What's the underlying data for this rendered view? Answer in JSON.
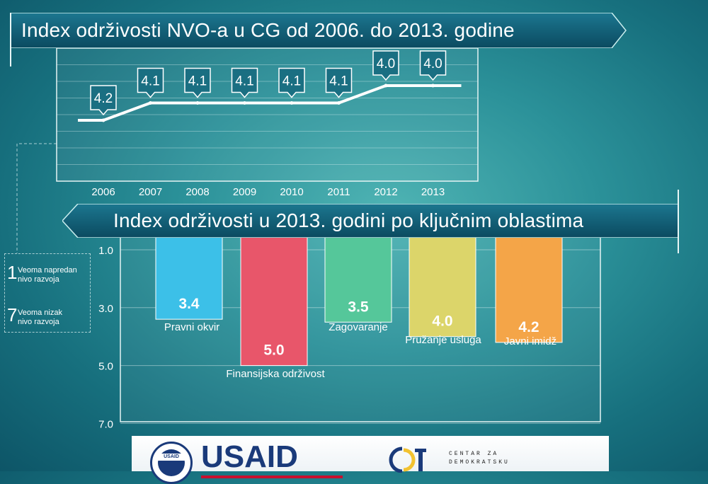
{
  "chart_data": [
    {
      "type": "line",
      "title": "Index održivosti NVO-a u CG od 2006. do 2013. godine",
      "categories": [
        "2006",
        "2007",
        "2008",
        "2009",
        "2010",
        "2011",
        "2012",
        "2013"
      ],
      "values": [
        4.2,
        4.1,
        4.1,
        4.1,
        4.1,
        4.1,
        4.0,
        4.0
      ],
      "value_labels": [
        "4.2",
        "4.1",
        "4.1",
        "4.1",
        "4.1",
        "4.1",
        "4.0",
        "4.0"
      ],
      "ylim": [
        3.9,
        4.3
      ],
      "y_inverted": true,
      "grid": true
    },
    {
      "type": "bar",
      "title": "Index održivosti u 2013. godini po ključnim oblastima",
      "categories": [
        "Pravni okvir",
        "Finansijska održivost",
        "Zagovaranje",
        "Pružanje usluga",
        "Javni imidž"
      ],
      "values": [
        3.4,
        5.0,
        3.5,
        4.0,
        4.2
      ],
      "value_labels": [
        "3.4",
        "5.0",
        "3.5",
        "4.0",
        "4.2"
      ],
      "colors": [
        "#3cc0e8",
        "#e8566a",
        "#55c79a",
        "#dcd56a",
        "#f4a548"
      ],
      "y_ticks": [
        "1.0",
        "3.0",
        "5.0",
        "7.0"
      ],
      "ylim": [
        1.0,
        7.0
      ],
      "y_inverted": true
    }
  ],
  "legend": {
    "top_number": "1",
    "top_text_1": "Veoma napredan",
    "top_text_2": "nivo razvoja",
    "bottom_number": "7",
    "bottom_text_1": "Veoma nizak",
    "bottom_text_2": "nivo razvoja"
  },
  "footer": {
    "usaid_seal": "USAID",
    "usaid_word": "USAID",
    "cdt_line1": "CENTAR ZA",
    "cdt_line2": "DEMOKRATSKU"
  },
  "colors": {
    "banner_dark": "#0c4f66",
    "banner_light": "#1a6a80",
    "line_white": "#ffffff"
  }
}
